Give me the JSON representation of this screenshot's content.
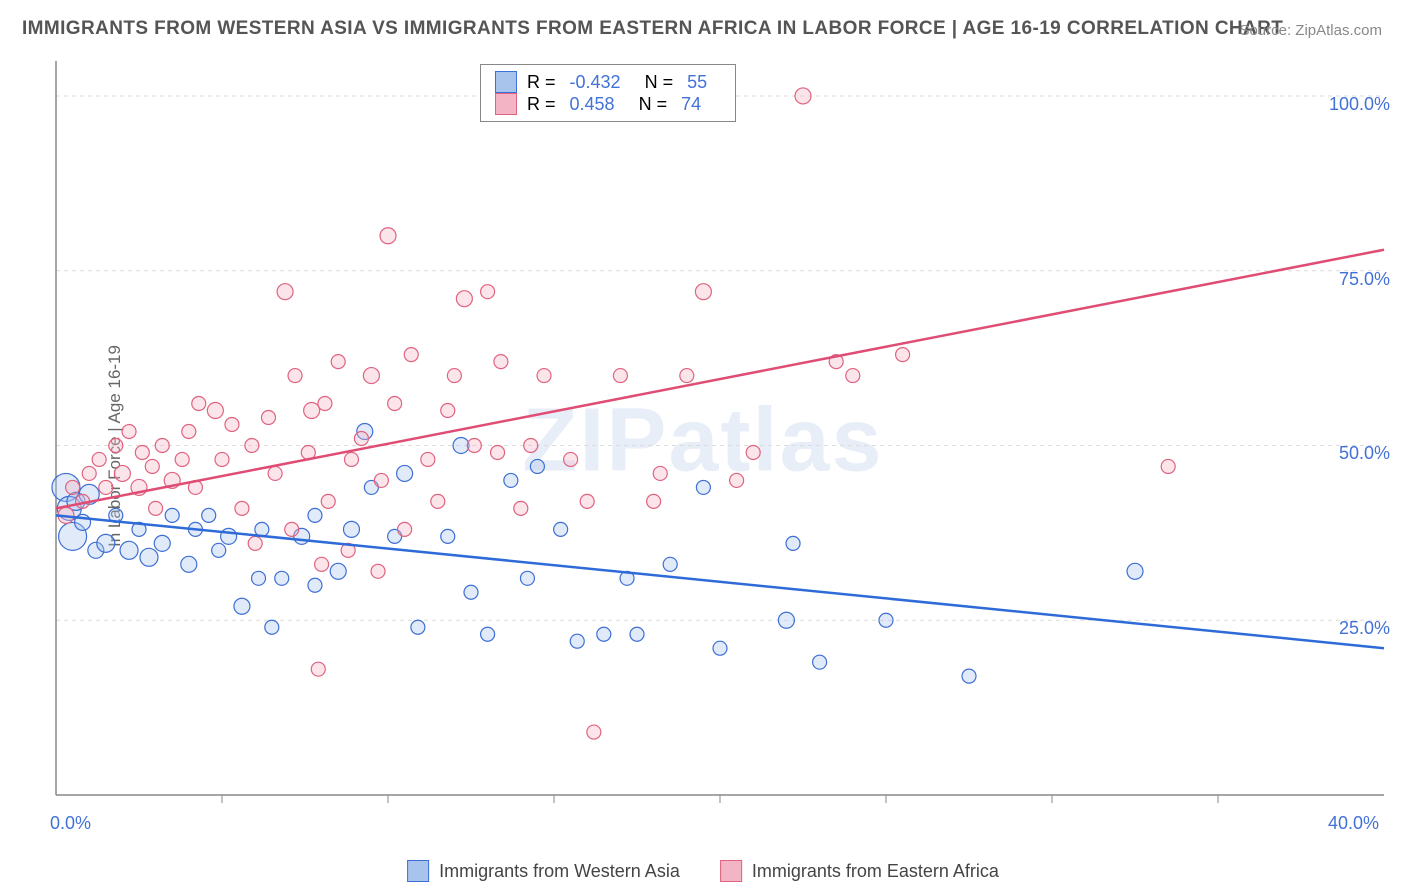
{
  "title": "IMMIGRANTS FROM WESTERN ASIA VS IMMIGRANTS FROM EASTERN AFRICA IN LABOR FORCE | AGE 16-19 CORRELATION CHART",
  "source": "Source: ZipAtlas.com",
  "ylabel": "In Labor Force | Age 16-19",
  "watermark": "ZIPatlas",
  "chart": {
    "type": "scatter",
    "background_color": "#ffffff",
    "grid_color": "#dcdcdc",
    "grid_dash": "4,4",
    "xlim": [
      0,
      40
    ],
    "ylim": [
      0,
      105
    ],
    "xtick_values": [
      0,
      40
    ],
    "xtick_labels": [
      "0.0%",
      "40.0%"
    ],
    "xtick_minor": [
      5,
      10,
      15,
      20,
      25,
      30,
      35
    ],
    "ytick_values": [
      25,
      50,
      75,
      100
    ],
    "ytick_labels": [
      "25.0%",
      "50.0%",
      "75.0%",
      "100.0%"
    ],
    "axis_color": "#888888",
    "tick_label_color": "#4272d7",
    "marker_stroke_width": 1.2,
    "marker_opacity": 0.35,
    "trend_line_width": 2.5,
    "series": [
      {
        "name": "Immigrants from Western Asia",
        "fill_color": "#a9c4ec",
        "stroke_color": "#3d6fd6",
        "line_color": "#2e6bd8",
        "R": "-0.432",
        "N": "55",
        "trend": {
          "x1": 0,
          "y1": 40,
          "x2": 40,
          "y2": 21
        },
        "points": [
          {
            "x": 0.3,
            "y": 44,
            "r": 14
          },
          {
            "x": 0.4,
            "y": 41,
            "r": 12
          },
          {
            "x": 0.5,
            "y": 37,
            "r": 14
          },
          {
            "x": 0.6,
            "y": 42,
            "r": 9
          },
          {
            "x": 0.8,
            "y": 39,
            "r": 8
          },
          {
            "x": 1.0,
            "y": 43,
            "r": 10
          },
          {
            "x": 1.2,
            "y": 35,
            "r": 8
          },
          {
            "x": 1.5,
            "y": 36,
            "r": 9
          },
          {
            "x": 1.8,
            "y": 40,
            "r": 7
          },
          {
            "x": 2.2,
            "y": 35,
            "r": 9
          },
          {
            "x": 2.5,
            "y": 38,
            "r": 7
          },
          {
            "x": 2.8,
            "y": 34,
            "r": 9
          },
          {
            "x": 3.2,
            "y": 36,
            "r": 8
          },
          {
            "x": 3.5,
            "y": 40,
            "r": 7
          },
          {
            "x": 4.0,
            "y": 33,
            "r": 8
          },
          {
            "x": 4.2,
            "y": 38,
            "r": 7
          },
          {
            "x": 4.6,
            "y": 40,
            "r": 7
          },
          {
            "x": 4.9,
            "y": 35,
            "r": 7
          },
          {
            "x": 5.2,
            "y": 37,
            "r": 8
          },
          {
            "x": 5.6,
            "y": 27,
            "r": 8
          },
          {
            "x": 6.1,
            "y": 31,
            "r": 7
          },
          {
            "x": 6.2,
            "y": 38,
            "r": 7
          },
          {
            "x": 6.5,
            "y": 24,
            "r": 7
          },
          {
            "x": 6.8,
            "y": 31,
            "r": 7
          },
          {
            "x": 7.4,
            "y": 37,
            "r": 8
          },
          {
            "x": 7.8,
            "y": 30,
            "r": 7
          },
          {
            "x": 7.8,
            "y": 40,
            "r": 7
          },
          {
            "x": 8.5,
            "y": 32,
            "r": 8
          },
          {
            "x": 8.9,
            "y": 38,
            "r": 8
          },
          {
            "x": 9.3,
            "y": 52,
            "r": 8
          },
          {
            "x": 9.5,
            "y": 44,
            "r": 7
          },
          {
            "x": 10.2,
            "y": 37,
            "r": 7
          },
          {
            "x": 10.5,
            "y": 46,
            "r": 8
          },
          {
            "x": 10.9,
            "y": 24,
            "r": 7
          },
          {
            "x": 11.8,
            "y": 37,
            "r": 7
          },
          {
            "x": 12.2,
            "y": 50,
            "r": 8
          },
          {
            "x": 12.5,
            "y": 29,
            "r": 7
          },
          {
            "x": 13.0,
            "y": 23,
            "r": 7
          },
          {
            "x": 13.7,
            "y": 45,
            "r": 7
          },
          {
            "x": 14.2,
            "y": 31,
            "r": 7
          },
          {
            "x": 14.5,
            "y": 47,
            "r": 7
          },
          {
            "x": 15.2,
            "y": 38,
            "r": 7
          },
          {
            "x": 15.7,
            "y": 22,
            "r": 7
          },
          {
            "x": 16.5,
            "y": 23,
            "r": 7
          },
          {
            "x": 17.2,
            "y": 31,
            "r": 7
          },
          {
            "x": 17.5,
            "y": 23,
            "r": 7
          },
          {
            "x": 18.5,
            "y": 33,
            "r": 7
          },
          {
            "x": 19.5,
            "y": 44,
            "r": 7
          },
          {
            "x": 20.0,
            "y": 21,
            "r": 7
          },
          {
            "x": 22.0,
            "y": 25,
            "r": 8
          },
          {
            "x": 22.2,
            "y": 36,
            "r": 7
          },
          {
            "x": 23.0,
            "y": 19,
            "r": 7
          },
          {
            "x": 27.5,
            "y": 17,
            "r": 7
          },
          {
            "x": 32.5,
            "y": 32,
            "r": 8
          },
          {
            "x": 25.0,
            "y": 25,
            "r": 7
          }
        ]
      },
      {
        "name": "Immigrants from Eastern Africa",
        "fill_color": "#f3b4c5",
        "stroke_color": "#e0637f",
        "line_color": "#e04d74",
        "R": "0.458",
        "N": "74",
        "trend": {
          "x1": 0,
          "y1": 41,
          "x2": 40,
          "y2": 78
        },
        "points": [
          {
            "x": 0.3,
            "y": 40,
            "r": 8
          },
          {
            "x": 0.5,
            "y": 44,
            "r": 7
          },
          {
            "x": 0.8,
            "y": 42,
            "r": 7
          },
          {
            "x": 1.0,
            "y": 46,
            "r": 7
          },
          {
            "x": 1.3,
            "y": 48,
            "r": 7
          },
          {
            "x": 1.5,
            "y": 44,
            "r": 7
          },
          {
            "x": 1.8,
            "y": 50,
            "r": 7
          },
          {
            "x": 2.0,
            "y": 46,
            "r": 8
          },
          {
            "x": 2.2,
            "y": 52,
            "r": 7
          },
          {
            "x": 2.5,
            "y": 44,
            "r": 8
          },
          {
            "x": 2.6,
            "y": 49,
            "r": 7
          },
          {
            "x": 2.9,
            "y": 47,
            "r": 7
          },
          {
            "x": 3.2,
            "y": 50,
            "r": 7
          },
          {
            "x": 3.5,
            "y": 45,
            "r": 8
          },
          {
            "x": 3.8,
            "y": 48,
            "r": 7
          },
          {
            "x": 4.0,
            "y": 52,
            "r": 7
          },
          {
            "x": 4.2,
            "y": 44,
            "r": 7
          },
          {
            "x": 4.3,
            "y": 56,
            "r": 7
          },
          {
            "x": 4.8,
            "y": 55,
            "r": 8
          },
          {
            "x": 5.0,
            "y": 48,
            "r": 7
          },
          {
            "x": 5.3,
            "y": 53,
            "r": 7
          },
          {
            "x": 5.6,
            "y": 41,
            "r": 7
          },
          {
            "x": 5.9,
            "y": 50,
            "r": 7
          },
          {
            "x": 6.4,
            "y": 54,
            "r": 7
          },
          {
            "x": 6.6,
            "y": 46,
            "r": 7
          },
          {
            "x": 6.9,
            "y": 72,
            "r": 8
          },
          {
            "x": 7.1,
            "y": 38,
            "r": 7
          },
          {
            "x": 7.2,
            "y": 60,
            "r": 7
          },
          {
            "x": 7.6,
            "y": 49,
            "r": 7
          },
          {
            "x": 7.7,
            "y": 55,
            "r": 8
          },
          {
            "x": 7.9,
            "y": 18,
            "r": 7
          },
          {
            "x": 8.0,
            "y": 33,
            "r": 7
          },
          {
            "x": 8.1,
            "y": 56,
            "r": 7
          },
          {
            "x": 8.2,
            "y": 42,
            "r": 7
          },
          {
            "x": 8.5,
            "y": 62,
            "r": 7
          },
          {
            "x": 8.8,
            "y": 35,
            "r": 7
          },
          {
            "x": 8.9,
            "y": 48,
            "r": 7
          },
          {
            "x": 9.2,
            "y": 51,
            "r": 7
          },
          {
            "x": 9.5,
            "y": 60,
            "r": 8
          },
          {
            "x": 9.7,
            "y": 32,
            "r": 7
          },
          {
            "x": 9.8,
            "y": 45,
            "r": 7
          },
          {
            "x": 10.0,
            "y": 80,
            "r": 8
          },
          {
            "x": 10.2,
            "y": 56,
            "r": 7
          },
          {
            "x": 10.5,
            "y": 38,
            "r": 7
          },
          {
            "x": 10.7,
            "y": 63,
            "r": 7
          },
          {
            "x": 11.2,
            "y": 48,
            "r": 7
          },
          {
            "x": 11.5,
            "y": 42,
            "r": 7
          },
          {
            "x": 12.0,
            "y": 60,
            "r": 7
          },
          {
            "x": 12.3,
            "y": 71,
            "r": 8
          },
          {
            "x": 12.6,
            "y": 50,
            "r": 7
          },
          {
            "x": 13.0,
            "y": 72,
            "r": 7
          },
          {
            "x": 13.3,
            "y": 49,
            "r": 7
          },
          {
            "x": 13.4,
            "y": 62,
            "r": 7
          },
          {
            "x": 14.0,
            "y": 41,
            "r": 7
          },
          {
            "x": 14.3,
            "y": 50,
            "r": 7
          },
          {
            "x": 14.7,
            "y": 60,
            "r": 7
          },
          {
            "x": 15.5,
            "y": 48,
            "r": 7
          },
          {
            "x": 16.0,
            "y": 42,
            "r": 7
          },
          {
            "x": 16.2,
            "y": 9,
            "r": 7
          },
          {
            "x": 17.0,
            "y": 60,
            "r": 7
          },
          {
            "x": 18.0,
            "y": 42,
            "r": 7
          },
          {
            "x": 18.2,
            "y": 46,
            "r": 7
          },
          {
            "x": 19.0,
            "y": 60,
            "r": 7
          },
          {
            "x": 19.5,
            "y": 72,
            "r": 8
          },
          {
            "x": 20.5,
            "y": 45,
            "r": 7
          },
          {
            "x": 21.0,
            "y": 49,
            "r": 7
          },
          {
            "x": 22.5,
            "y": 100,
            "r": 8
          },
          {
            "x": 23.5,
            "y": 62,
            "r": 7
          },
          {
            "x": 24.0,
            "y": 60,
            "r": 7
          },
          {
            "x": 25.5,
            "y": 63,
            "r": 7
          },
          {
            "x": 33.5,
            "y": 47,
            "r": 7
          },
          {
            "x": 3.0,
            "y": 41,
            "r": 7
          },
          {
            "x": 6.0,
            "y": 36,
            "r": 7
          },
          {
            "x": 11.8,
            "y": 55,
            "r": 7
          }
        ]
      }
    ],
    "legend": [
      {
        "label": "Immigrants from Western Asia",
        "fill": "#a9c4ec",
        "stroke": "#3d6fd6"
      },
      {
        "label": "Immigrants from Eastern Africa",
        "fill": "#f3b4c5",
        "stroke": "#e0637f"
      }
    ]
  }
}
